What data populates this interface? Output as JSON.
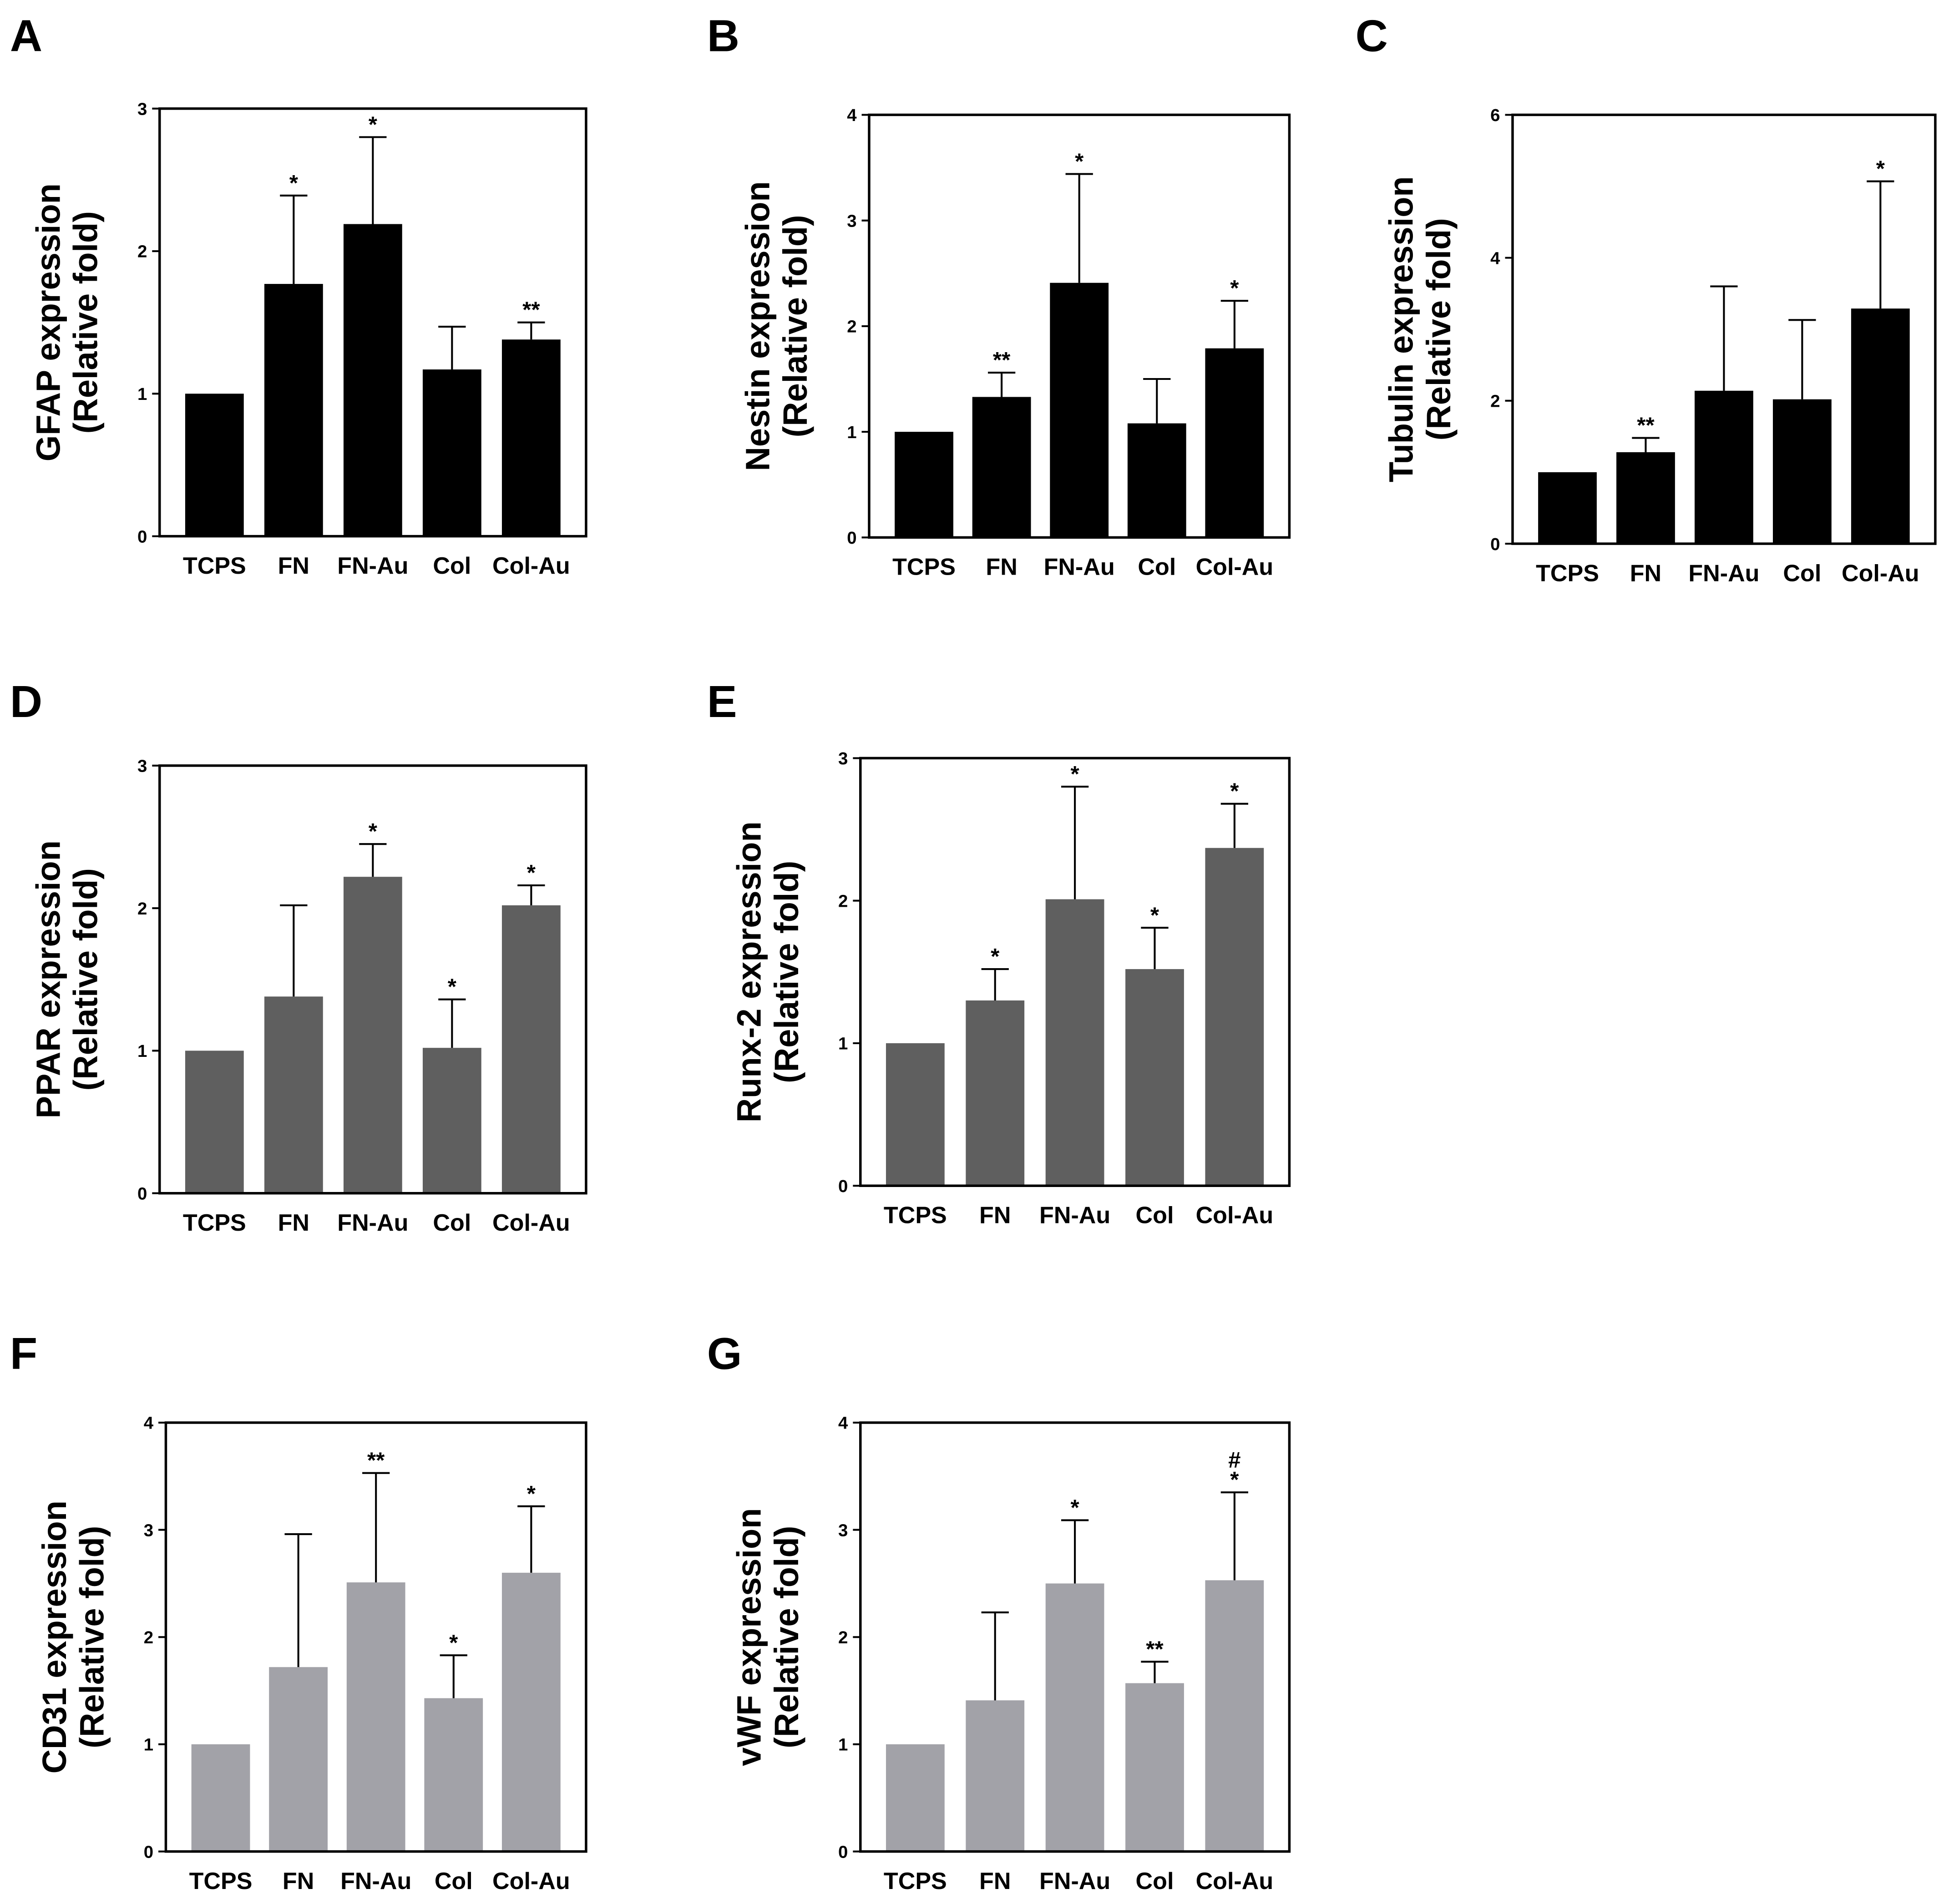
{
  "chart_data": [
    {
      "type": "bar",
      "panel": "A",
      "ylabel": [
        "GFAP expression",
        "(Relative fold)"
      ],
      "color": "#000000",
      "categories": [
        "TCPS",
        "FN",
        "FN-Au",
        "Col",
        "Col-Au"
      ],
      "values": [
        1,
        1.77,
        2.19,
        1.17,
        1.38
      ],
      "errors": [
        null,
        0.62,
        0.61,
        0.3,
        0.12
      ],
      "significance": [
        [],
        [
          "*"
        ],
        [
          "*"
        ],
        [],
        [
          "**"
        ]
      ],
      "ylim": [
        0,
        3
      ],
      "yticks": [
        0,
        1,
        2,
        3
      ]
    },
    {
      "type": "bar",
      "panel": "B",
      "ylabel": [
        "Nestin expression",
        "(Relative fold)"
      ],
      "color": "#000000",
      "categories": [
        "TCPS",
        "FN",
        "FN-Au",
        "Col",
        "Col-Au"
      ],
      "values": [
        1,
        1.33,
        2.41,
        1.08,
        1.79
      ],
      "errors": [
        null,
        0.23,
        1.03,
        0.42,
        0.45
      ],
      "significance": [
        [],
        [
          "**"
        ],
        [
          "*"
        ],
        [],
        [
          "*"
        ]
      ],
      "ylim": [
        0,
        4
      ],
      "yticks": [
        0,
        1,
        2,
        3,
        4
      ]
    },
    {
      "type": "bar",
      "panel": "C",
      "ylabel": [
        "Tubulin expression",
        "(Relative fold)"
      ],
      "color": "#000000",
      "categories": [
        "TCPS",
        "FN",
        "FN-Au",
        "Col",
        "Col-Au"
      ],
      "values": [
        1,
        1.28,
        2.14,
        2.02,
        3.29
      ],
      "errors": [
        null,
        0.2,
        1.46,
        1.11,
        1.78
      ],
      "significance": [
        [],
        [
          "**"
        ],
        [],
        [],
        [
          "*"
        ]
      ],
      "ylim": [
        0,
        6
      ],
      "yticks": [
        0,
        2,
        4,
        6
      ]
    },
    {
      "type": "bar",
      "panel": "D",
      "ylabel": [
        "PPAR expression",
        "(Relative fold)"
      ],
      "color": "#5f5f5f",
      "categories": [
        "TCPS",
        "FN",
        "FN-Au",
        "Col",
        "Col-Au"
      ],
      "values": [
        1,
        1.38,
        2.22,
        1.02,
        2.02
      ],
      "errors": [
        null,
        0.64,
        0.23,
        0.34,
        0.14
      ],
      "significance": [
        [],
        [],
        [
          "*"
        ],
        [
          "*"
        ],
        [
          "*"
        ]
      ],
      "ylim": [
        0,
        3
      ],
      "yticks": [
        0,
        1,
        2,
        3
      ]
    },
    {
      "type": "bar",
      "panel": "E",
      "ylabel": [
        "Runx-2 expression",
        "(Relative fold)"
      ],
      "color": "#5f5f5f",
      "categories": [
        "TCPS",
        "FN",
        "FN-Au",
        "Col",
        "Col-Au"
      ],
      "values": [
        1,
        1.3,
        2.01,
        1.52,
        2.37
      ],
      "errors": [
        null,
        0.22,
        0.79,
        0.29,
        0.31
      ],
      "significance": [
        [],
        [
          "*"
        ],
        [
          "*"
        ],
        [
          "*"
        ],
        [
          "*"
        ]
      ],
      "ylim": [
        0,
        3
      ],
      "yticks": [
        0,
        1,
        2,
        3
      ]
    },
    {
      "type": "bar",
      "panel": "F",
      "ylabel": [
        "CD31 expression",
        "(Relative fold)"
      ],
      "color": "#a2a2a8",
      "categories": [
        "TCPS",
        "FN",
        "FN-Au",
        "Col",
        "Col-Au"
      ],
      "values": [
        1,
        1.72,
        2.51,
        1.43,
        2.6
      ],
      "errors": [
        null,
        1.24,
        1.02,
        0.4,
        0.62
      ],
      "significance": [
        [],
        [],
        [
          "**"
        ],
        [
          "*"
        ],
        [
          "*"
        ]
      ],
      "ylim": [
        0,
        4
      ],
      "yticks": [
        0,
        1,
        2,
        3,
        4
      ]
    },
    {
      "type": "bar",
      "panel": "G",
      "ylabel": [
        "vWF expression",
        "(Relative fold)"
      ],
      "color": "#a2a2a8",
      "categories": [
        "TCPS",
        "FN",
        "FN-Au",
        "Col",
        "Col-Au"
      ],
      "values": [
        1,
        1.41,
        2.5,
        1.57,
        2.53
      ],
      "errors": [
        null,
        0.82,
        0.59,
        0.2,
        0.82
      ],
      "significance": [
        [],
        [],
        [
          "*"
        ],
        [
          "**"
        ],
        [
          "#",
          "*"
        ]
      ],
      "ylim": [
        0,
        4
      ],
      "yticks": [
        0,
        1,
        2,
        3,
        4
      ]
    }
  ]
}
